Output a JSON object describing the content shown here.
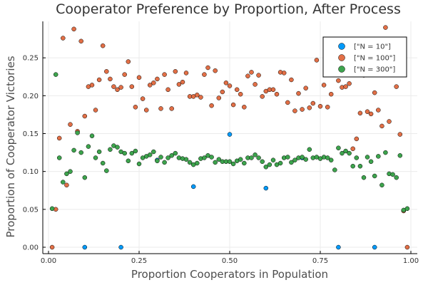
{
  "chart_data": {
    "type": "scatter",
    "title": "Cooperator Preference by Proportion, After Process",
    "xlabel": "Proportion Cooperators in Population",
    "ylabel": "Proportion of Cooperator Victories",
    "xlim": [
      0,
      1
    ],
    "ylim": [
      0,
      0.3
    ],
    "xticks": [
      0.0,
      0.25,
      0.5,
      0.75,
      1.0
    ],
    "xtick_labels": [
      "0.00",
      "0.25",
      "0.50",
      "0.75",
      "1.00"
    ],
    "yticks": [
      0.0,
      0.05,
      0.1,
      0.15,
      0.2,
      0.25
    ],
    "ytick_labels": [
      "0.00",
      "0.05",
      "0.10",
      "0.15",
      "0.20",
      "0.25"
    ],
    "grid": true,
    "legend_position": "top-right",
    "series": [
      {
        "name": "[\"N = 10\"]",
        "color": "#009AFA",
        "points": [
          [
            0.1,
            0.0
          ],
          [
            0.2,
            0.0
          ],
          [
            0.3,
            0.115
          ],
          [
            0.4,
            0.08
          ],
          [
            0.5,
            0.149
          ],
          [
            0.6,
            0.078
          ],
          [
            0.7,
            0.118
          ],
          [
            0.8,
            0.0
          ],
          [
            0.9,
            0.0
          ]
        ]
      },
      {
        "name": "[\"N = 100\"]",
        "color": "#E26F46",
        "points": [
          [
            0.01,
            0.0
          ],
          [
            0.02,
            0.05
          ],
          [
            0.03,
            0.144
          ],
          [
            0.04,
            0.276
          ],
          [
            0.05,
            0.082
          ],
          [
            0.06,
            0.162
          ],
          [
            0.07,
            0.288
          ],
          [
            0.08,
            0.153
          ],
          [
            0.09,
            0.272
          ],
          [
            0.1,
            0.173
          ],
          [
            0.11,
            0.212
          ],
          [
            0.12,
            0.214
          ],
          [
            0.13,
            0.181
          ],
          [
            0.14,
            0.221
          ],
          [
            0.15,
            0.266
          ],
          [
            0.16,
            0.232
          ],
          [
            0.17,
            0.222
          ],
          [
            0.18,
            0.212
          ],
          [
            0.19,
            0.208
          ],
          [
            0.2,
            0.211
          ],
          [
            0.21,
            0.228
          ],
          [
            0.22,
            0.245
          ],
          [
            0.23,
            0.212
          ],
          [
            0.24,
            0.185
          ],
          [
            0.25,
            0.224
          ],
          [
            0.26,
            0.196
          ],
          [
            0.27,
            0.181
          ],
          [
            0.28,
            0.214
          ],
          [
            0.29,
            0.217
          ],
          [
            0.3,
            0.222
          ],
          [
            0.31,
            0.183
          ],
          [
            0.32,
            0.228
          ],
          [
            0.33,
            0.208
          ],
          [
            0.34,
            0.183
          ],
          [
            0.35,
            0.232
          ],
          [
            0.36,
            0.215
          ],
          [
            0.37,
            0.218
          ],
          [
            0.38,
            0.23
          ],
          [
            0.39,
            0.199
          ],
          [
            0.4,
            0.199
          ],
          [
            0.41,
            0.201
          ],
          [
            0.42,
            0.198
          ],
          [
            0.43,
            0.228
          ],
          [
            0.44,
            0.237
          ],
          [
            0.45,
            0.187
          ],
          [
            0.46,
            0.233
          ],
          [
            0.47,
            0.197
          ],
          [
            0.48,
            0.205
          ],
          [
            0.49,
            0.217
          ],
          [
            0.5,
            0.213
          ],
          [
            0.51,
            0.188
          ],
          [
            0.52,
            0.208
          ],
          [
            0.53,
            0.202
          ],
          [
            0.54,
            0.185
          ],
          [
            0.55,
            0.226
          ],
          [
            0.56,
            0.231
          ],
          [
            0.57,
            0.215
          ],
          [
            0.58,
            0.227
          ],
          [
            0.59,
            0.199
          ],
          [
            0.6,
            0.206
          ],
          [
            0.61,
            0.208
          ],
          [
            0.62,
            0.208
          ],
          [
            0.63,
            0.202
          ],
          [
            0.64,
            0.231
          ],
          [
            0.65,
            0.23
          ],
          [
            0.66,
            0.191
          ],
          [
            0.67,
            0.221
          ],
          [
            0.68,
            0.18
          ],
          [
            0.69,
            0.203
          ],
          [
            0.7,
            0.182
          ],
          [
            0.71,
            0.21
          ],
          [
            0.72,
            0.184
          ],
          [
            0.73,
            0.19
          ],
          [
            0.74,
            0.247
          ],
          [
            0.75,
            0.186
          ],
          [
            0.76,
            0.214
          ],
          [
            0.77,
            0.185
          ],
          [
            0.78,
            0.202
          ],
          [
            0.79,
            0.254
          ],
          [
            0.8,
            0.22
          ],
          [
            0.81,
            0.211
          ],
          [
            0.82,
            0.212
          ],
          [
            0.83,
            0.216
          ],
          [
            0.84,
            0.13
          ],
          [
            0.85,
            0.143
          ],
          [
            0.86,
            0.177
          ],
          [
            0.87,
            0.227
          ],
          [
            0.88,
            0.179
          ],
          [
            0.89,
            0.176
          ],
          [
            0.9,
            0.204
          ],
          [
            0.91,
            0.181
          ],
          [
            0.92,
            0.16
          ],
          [
            0.93,
            0.29
          ],
          [
            0.94,
            0.166
          ],
          [
            0.95,
            0.249
          ],
          [
            0.96,
            0.212
          ],
          [
            0.97,
            0.149
          ],
          [
            0.98,
            0.048
          ],
          [
            0.99,
            0.0
          ]
        ]
      },
      {
        "name": "[\"N = 300\"]",
        "color": "#3DA44D",
        "points": [
          [
            0.01,
            0.051
          ],
          [
            0.02,
            0.228
          ],
          [
            0.03,
            0.118
          ],
          [
            0.04,
            0.086
          ],
          [
            0.05,
            0.097
          ],
          [
            0.06,
            0.1
          ],
          [
            0.07,
            0.128
          ],
          [
            0.08,
            0.151
          ],
          [
            0.09,
            0.125
          ],
          [
            0.1,
            0.092
          ],
          [
            0.11,
            0.133
          ],
          [
            0.12,
            0.147
          ],
          [
            0.13,
            0.118
          ],
          [
            0.14,
            0.126
          ],
          [
            0.15,
            0.111
          ],
          [
            0.16,
            0.101
          ],
          [
            0.17,
            0.129
          ],
          [
            0.18,
            0.134
          ],
          [
            0.19,
            0.132
          ],
          [
            0.2,
            0.126
          ],
          [
            0.21,
            0.124
          ],
          [
            0.22,
            0.114
          ],
          [
            0.23,
            0.124
          ],
          [
            0.24,
            0.127
          ],
          [
            0.25,
            0.11
          ],
          [
            0.26,
            0.118
          ],
          [
            0.27,
            0.12
          ],
          [
            0.28,
            0.122
          ],
          [
            0.29,
            0.126
          ],
          [
            0.3,
            0.114
          ],
          [
            0.31,
            0.119
          ],
          [
            0.32,
            0.112
          ],
          [
            0.33,
            0.118
          ],
          [
            0.34,
            0.121
          ],
          [
            0.35,
            0.124
          ],
          [
            0.36,
            0.118
          ],
          [
            0.37,
            0.117
          ],
          [
            0.38,
            0.116
          ],
          [
            0.39,
            0.112
          ],
          [
            0.4,
            0.109
          ],
          [
            0.41,
            0.111
          ],
          [
            0.42,
            0.117
          ],
          [
            0.43,
            0.118
          ],
          [
            0.44,
            0.121
          ],
          [
            0.45,
            0.119
          ],
          [
            0.46,
            0.112
          ],
          [
            0.47,
            0.116
          ],
          [
            0.48,
            0.113
          ],
          [
            0.49,
            0.113
          ],
          [
            0.5,
            0.113
          ],
          [
            0.51,
            0.11
          ],
          [
            0.52,
            0.114
          ],
          [
            0.53,
            0.116
          ],
          [
            0.54,
            0.111
          ],
          [
            0.55,
            0.118
          ],
          [
            0.56,
            0.118
          ],
          [
            0.57,
            0.122
          ],
          [
            0.58,
            0.118
          ],
          [
            0.59,
            0.113
          ],
          [
            0.6,
            0.106
          ],
          [
            0.61,
            0.109
          ],
          [
            0.62,
            0.115
          ],
          [
            0.63,
            0.109
          ],
          [
            0.64,
            0.111
          ],
          [
            0.65,
            0.118
          ],
          [
            0.66,
            0.119
          ],
          [
            0.67,
            0.112
          ],
          [
            0.68,
            0.115
          ],
          [
            0.69,
            0.118
          ],
          [
            0.7,
            0.119
          ],
          [
            0.71,
            0.116
          ],
          [
            0.72,
            0.129
          ],
          [
            0.73,
            0.118
          ],
          [
            0.74,
            0.119
          ],
          [
            0.75,
            0.117
          ],
          [
            0.76,
            0.119
          ],
          [
            0.77,
            0.118
          ],
          [
            0.78,
            0.115
          ],
          [
            0.79,
            0.102
          ],
          [
            0.8,
            0.131
          ],
          [
            0.81,
            0.124
          ],
          [
            0.82,
            0.127
          ],
          [
            0.83,
            0.124
          ],
          [
            0.84,
            0.107
          ],
          [
            0.85,
            0.118
          ],
          [
            0.86,
            0.107
          ],
          [
            0.87,
            0.092
          ],
          [
            0.88,
            0.119
          ],
          [
            0.89,
            0.113
          ],
          [
            0.9,
            0.094
          ],
          [
            0.91,
            0.12
          ],
          [
            0.92,
            0.082
          ],
          [
            0.93,
            0.125
          ],
          [
            0.94,
            0.097
          ],
          [
            0.95,
            0.096
          ],
          [
            0.96,
            0.092
          ],
          [
            0.97,
            0.121
          ],
          [
            0.98,
            0.049
          ],
          [
            0.99,
            0.051
          ]
        ]
      }
    ]
  }
}
